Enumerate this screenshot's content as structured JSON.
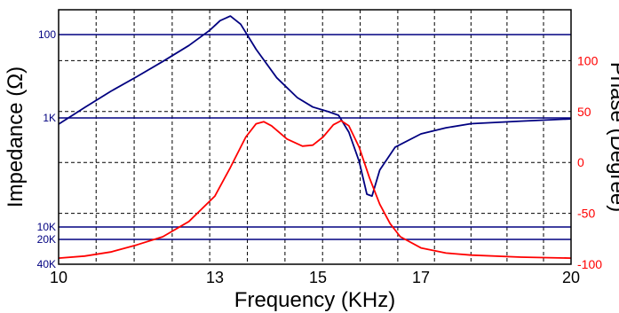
{
  "chart_data": {
    "type": "line",
    "xlabel": "Frequency (KHz)",
    "ylabel_left": "Impedance (Ω)",
    "ylabel_right": "Phase (Degree)",
    "grid": true,
    "colors": {
      "impedance": "#000080",
      "phase": "#ff0000",
      "grid": "#000000",
      "reference_lines": "#000080"
    },
    "x_ticks": [
      {
        "label": "10",
        "value": 10
      },
      {
        "label": "13",
        "value": 13
      },
      {
        "label": "15",
        "value": 15
      },
      {
        "label": "17",
        "value": 17
      },
      {
        "label": "20",
        "value": 20
      }
    ],
    "x_grid": [
      10,
      10.72,
      11.45,
      12.18,
      12.9,
      13.63,
      14.36,
      15.09,
      15.82,
      16.55,
      17.27,
      18,
      18.72,
      19.45,
      20
    ],
    "left_axis_ticks": [
      {
        "label": "100",
        "value": 100
      },
      {
        "label": "1K",
        "value": 1000
      },
      {
        "label": "10K",
        "value": 10000
      },
      {
        "label": "20K",
        "value": 20000
      },
      {
        "label": "40K",
        "value": 40000
      }
    ],
    "right_axis": {
      "range": [
        -100,
        150
      ]
    },
    "right_axis_ticks": [
      {
        "label": "100",
        "value": 100
      },
      {
        "label": "50",
        "value": 50
      },
      {
        "label": "0",
        "value": 0
      },
      {
        "label": "-50",
        "value": -50
      },
      {
        "label": "-100",
        "value": -100
      }
    ],
    "series": [
      {
        "key": "impedance",
        "axis": "left",
        "points": [
          [
            10,
            1140
          ],
          [
            10.5,
            750
          ],
          [
            11,
            480
          ],
          [
            11.5,
            320
          ],
          [
            12,
            210
          ],
          [
            12.5,
            135
          ],
          [
            12.9,
            89
          ],
          [
            13.1,
            68
          ],
          [
            13.3,
            60
          ],
          [
            13.5,
            75
          ],
          [
            13.8,
            150
          ],
          [
            14.2,
            330
          ],
          [
            14.6,
            570
          ],
          [
            14.9,
            740
          ],
          [
            15.2,
            840
          ],
          [
            15.4,
            930
          ],
          [
            15.6,
            1350
          ],
          [
            15.8,
            2500
          ],
          [
            15.95,
            5000
          ],
          [
            16.05,
            5200
          ],
          [
            16.2,
            3000
          ],
          [
            16.5,
            1850
          ],
          [
            17,
            1400
          ],
          [
            17.5,
            1230
          ],
          [
            18,
            1130
          ],
          [
            19,
            1070
          ],
          [
            20,
            1020
          ]
        ]
      },
      {
        "key": "phase",
        "axis": "right",
        "points": [
          [
            10,
            -94
          ],
          [
            10.5,
            -92
          ],
          [
            11,
            -88
          ],
          [
            11.5,
            -81
          ],
          [
            12,
            -73
          ],
          [
            12.5,
            -58
          ],
          [
            13,
            -33
          ],
          [
            13.3,
            -5
          ],
          [
            13.6,
            25
          ],
          [
            13.8,
            38
          ],
          [
            13.95,
            40
          ],
          [
            14.1,
            36
          ],
          [
            14.4,
            23
          ],
          [
            14.7,
            16
          ],
          [
            14.9,
            17
          ],
          [
            15.1,
            25
          ],
          [
            15.3,
            37
          ],
          [
            15.45,
            41
          ],
          [
            15.6,
            36
          ],
          [
            15.8,
            15
          ],
          [
            16,
            -15
          ],
          [
            16.2,
            -41
          ],
          [
            16.4,
            -60
          ],
          [
            16.6,
            -73
          ],
          [
            17,
            -84
          ],
          [
            17.5,
            -89
          ],
          [
            18,
            -91
          ],
          [
            19,
            -93
          ],
          [
            20,
            -94
          ]
        ]
      }
    ]
  }
}
